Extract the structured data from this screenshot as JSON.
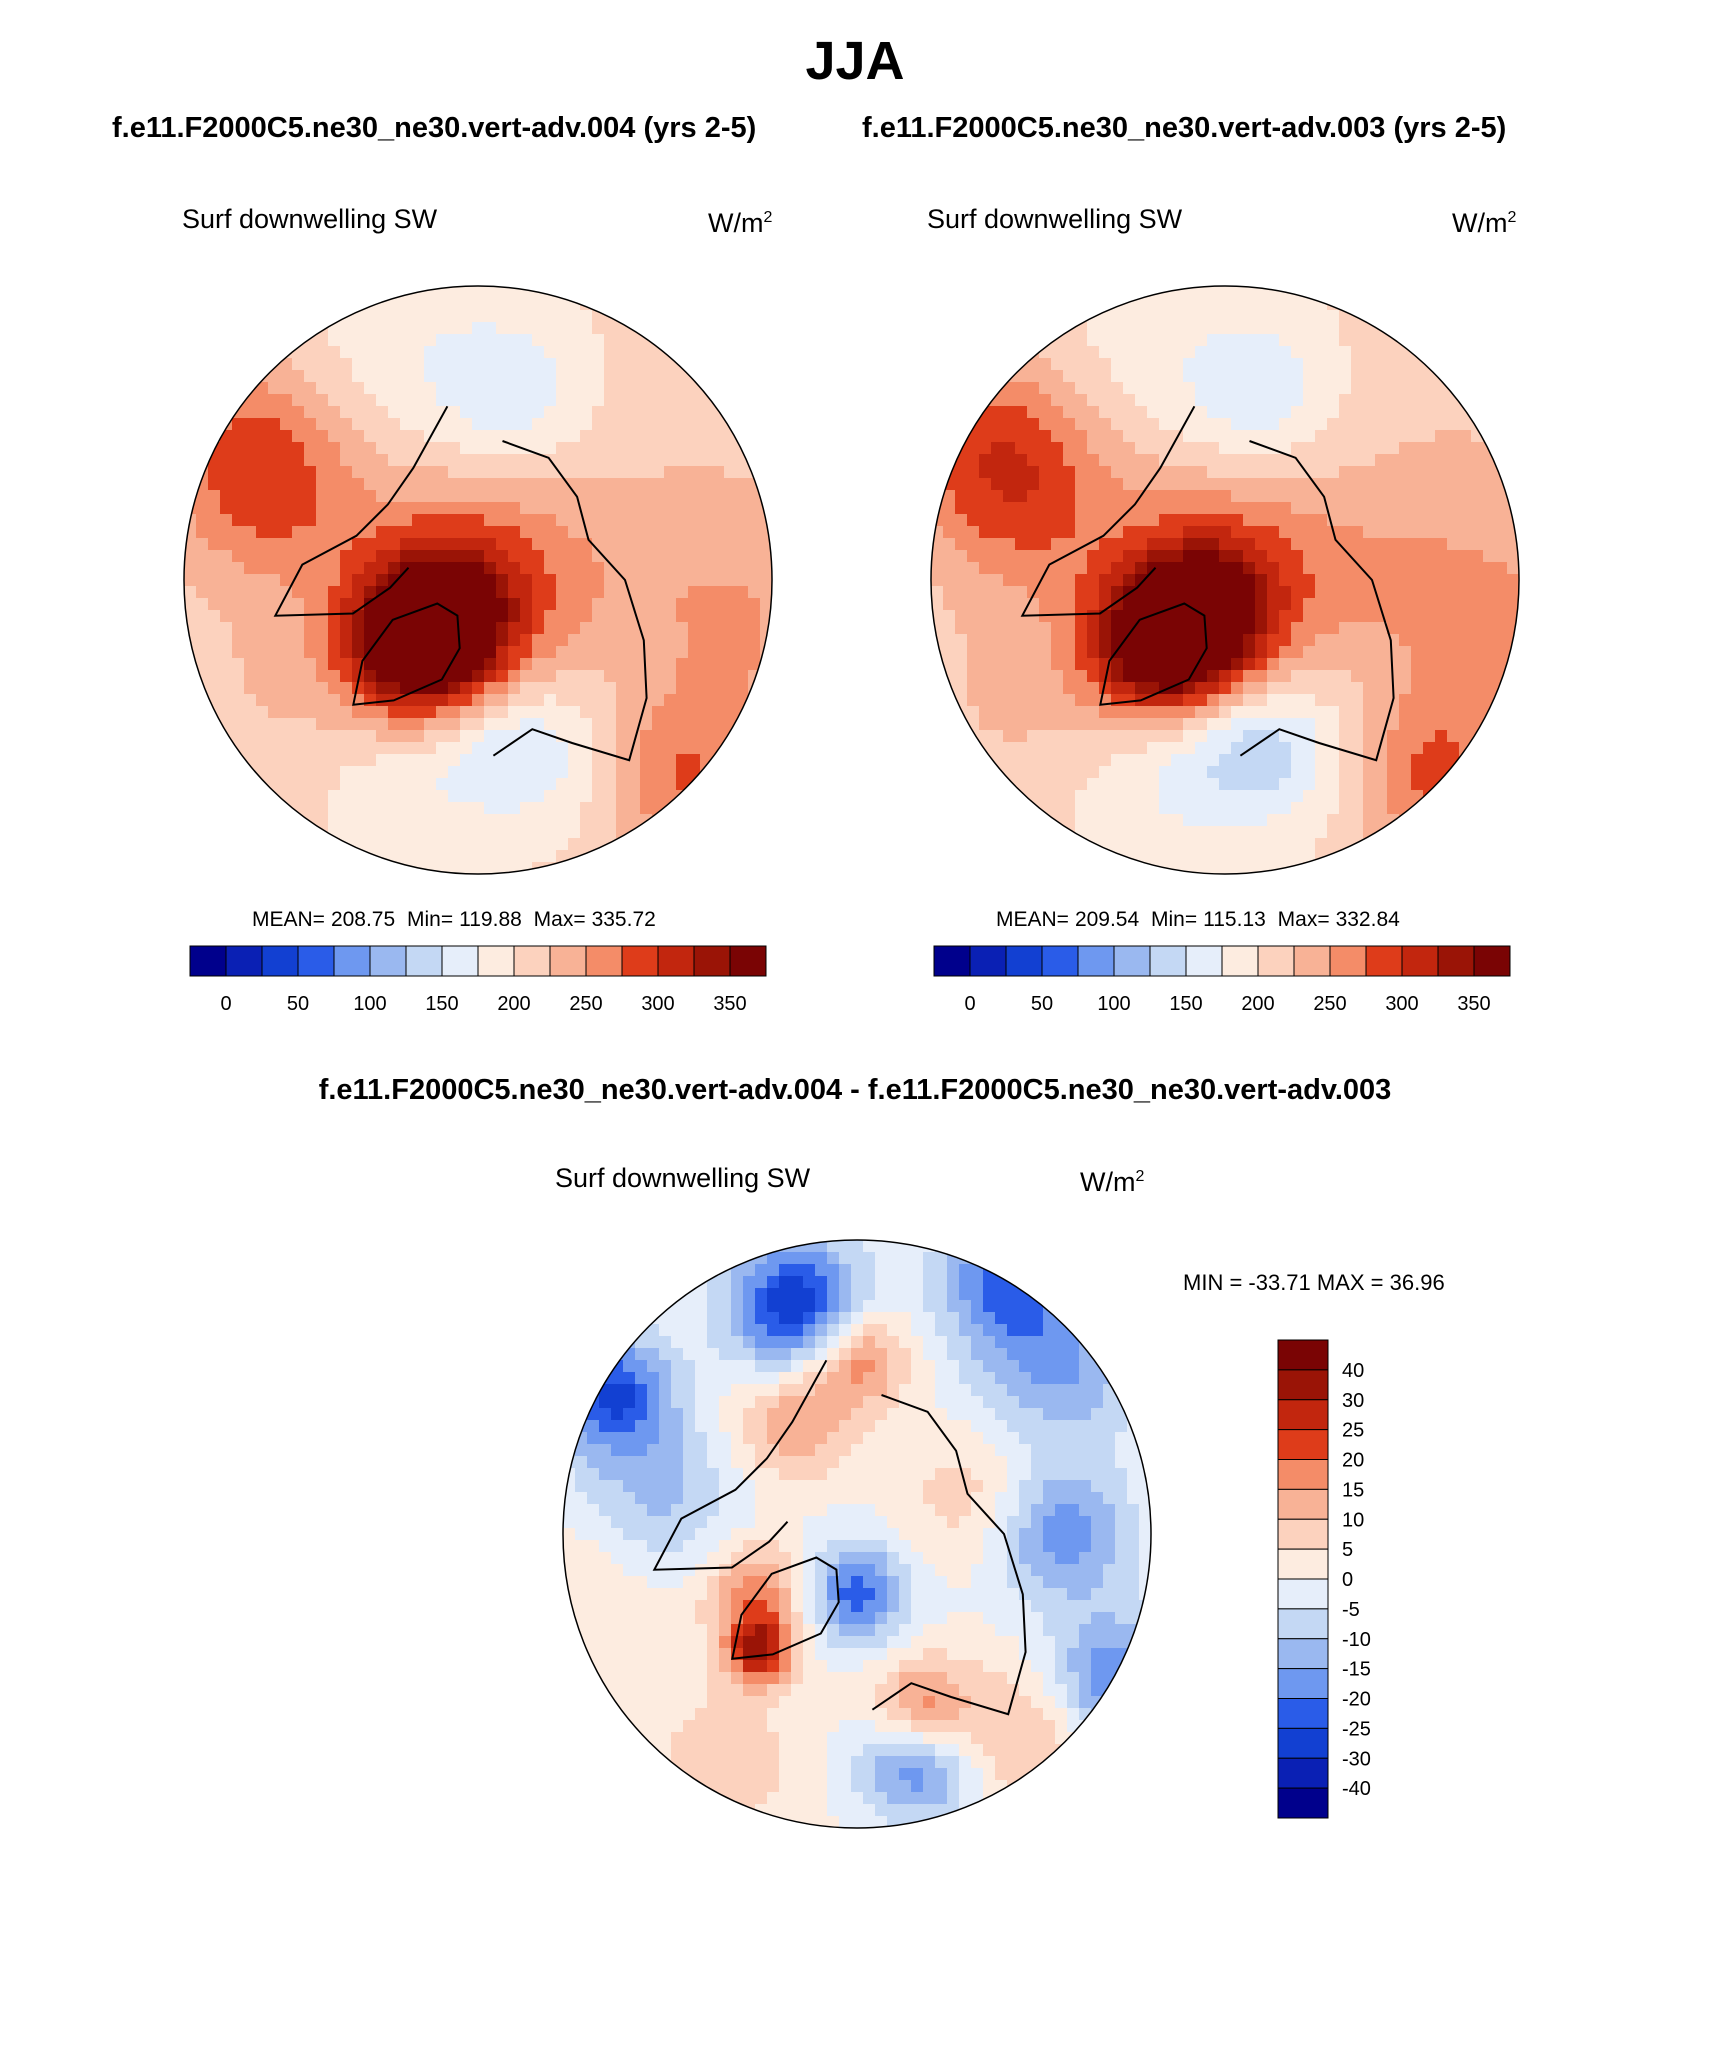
{
  "figure": {
    "title": "JJA",
    "diff_title": "f.e11.F2000C5.ne30_ne30.vert-adv.004 - f.e11.F2000C5.ne30_ne30.vert-adv.003"
  },
  "palette": [
    "#00008c",
    "#0a20b4",
    "#1240d2",
    "#2a5ce8",
    "#4a7cf0",
    "#6e98f0",
    "#9ab8f0",
    "#c4d8f4",
    "#e6eefa",
    "#fdece0",
    "#fcd2be",
    "#f8b296",
    "#f48c68",
    "#ec6438",
    "#de3c1a",
    "#c2260e",
    "#9a1406",
    "#7a0404"
  ],
  "chart_data": [
    {
      "type": "heatmap",
      "projection": "north-polar-stereographic",
      "case_title": "f.e11.F2000C5.ne30_ne30.vert-adv.004 (yrs 2-5)",
      "variable": "Surf downwelling SW",
      "units_base": "W/m",
      "units_exp": "2",
      "stats": {
        "mean_label": "MEAN=",
        "mean": "208.75",
        "min_label": "Min=",
        "min": "119.88",
        "max_label": "Max=",
        "max": "335.72"
      },
      "colorbar": {
        "orientation": "horizontal",
        "levels": [
          0,
          25,
          50,
          75,
          100,
          125,
          150,
          175,
          200,
          225,
          250,
          275,
          300,
          325,
          350
        ],
        "tick_labels": [
          "0",
          "50",
          "100",
          "150",
          "200",
          "250",
          "300",
          "350"
        ]
      },
      "field": {
        "background": 205,
        "blobs": [
          {
            "lon": 0,
            "lat": 90,
            "value": 275,
            "radius_deg": 14
          },
          {
            "lon": 320,
            "lat": 82,
            "value": 278,
            "radius_deg": 10
          },
          {
            "lon": 318,
            "lat": 72,
            "value": 310,
            "radius_deg": 9
          },
          {
            "lon": 318,
            "lat": 78,
            "value": 295,
            "radius_deg": 8
          },
          {
            "lon": 340,
            "lat": 60,
            "value": 170,
            "radius_deg": 12
          },
          {
            "lon": 10,
            "lat": 62,
            "value": 165,
            "radius_deg": 8
          },
          {
            "lon": 30,
            "lat": 55,
            "value": 178,
            "radius_deg": 10
          },
          {
            "lon": 170,
            "lat": 58,
            "value": 160,
            "radius_deg": 9
          },
          {
            "lon": 200,
            "lat": 50,
            "value": 180,
            "radius_deg": 14
          },
          {
            "lon": 240,
            "lat": 45,
            "value": 270,
            "radius_deg": 12
          },
          {
            "lon": 250,
            "lat": 55,
            "value": 245,
            "radius_deg": 12
          },
          {
            "lon": 80,
            "lat": 45,
            "value": 250,
            "radius_deg": 15
          },
          {
            "lon": 45,
            "lat": 42,
            "value": 275,
            "radius_deg": 10
          },
          {
            "lon": 120,
            "lat": 45,
            "value": 215,
            "radius_deg": 14
          },
          {
            "lon": 300,
            "lat": 50,
            "value": 225,
            "radius_deg": 12
          },
          {
            "lon": 100,
            "lat": 65,
            "value": 215,
            "radius_deg": 10
          }
        ]
      }
    },
    {
      "type": "heatmap",
      "projection": "north-polar-stereographic",
      "case_title": "f.e11.F2000C5.ne30_ne30.vert-adv.003 (yrs 2-5)",
      "variable": "Surf downwelling SW",
      "units_base": "W/m",
      "units_exp": "2",
      "stats": {
        "mean_label": "MEAN=",
        "mean": "209.54",
        "min_label": "Min=",
        "min": "115.13",
        "max_label": "Max=",
        "max": "332.84"
      },
      "colorbar": {
        "orientation": "horizontal",
        "levels": [
          0,
          25,
          50,
          75,
          100,
          125,
          150,
          175,
          200,
          225,
          250,
          275,
          300,
          325,
          350
        ],
        "tick_labels": [
          "0",
          "50",
          "100",
          "150",
          "200",
          "250",
          "300",
          "350"
        ]
      },
      "field": {
        "background": 205,
        "blobs": [
          {
            "lon": 0,
            "lat": 90,
            "value": 280,
            "radius_deg": 14
          },
          {
            "lon": 330,
            "lat": 84,
            "value": 285,
            "radius_deg": 9
          },
          {
            "lon": 318,
            "lat": 72,
            "value": 312,
            "radius_deg": 9
          },
          {
            "lon": 318,
            "lat": 78,
            "value": 298,
            "radius_deg": 8
          },
          {
            "lon": 345,
            "lat": 60,
            "value": 160,
            "radius_deg": 12
          },
          {
            "lon": 10,
            "lat": 62,
            "value": 160,
            "radius_deg": 8
          },
          {
            "lon": 30,
            "lat": 55,
            "value": 175,
            "radius_deg": 10
          },
          {
            "lon": 170,
            "lat": 58,
            "value": 158,
            "radius_deg": 9
          },
          {
            "lon": 200,
            "lat": 50,
            "value": 185,
            "radius_deg": 14
          },
          {
            "lon": 240,
            "lat": 45,
            "value": 275,
            "radius_deg": 12
          },
          {
            "lon": 250,
            "lat": 55,
            "value": 250,
            "radius_deg": 12
          },
          {
            "lon": 80,
            "lat": 45,
            "value": 255,
            "radius_deg": 15
          },
          {
            "lon": 45,
            "lat": 42,
            "value": 280,
            "radius_deg": 10
          },
          {
            "lon": 120,
            "lat": 45,
            "value": 220,
            "radius_deg": 14
          },
          {
            "lon": 300,
            "lat": 50,
            "value": 230,
            "radius_deg": 12
          },
          {
            "lon": 100,
            "lat": 65,
            "value": 220,
            "radius_deg": 10
          }
        ]
      }
    },
    {
      "type": "heatmap",
      "projection": "north-polar-stereographic",
      "variable": "Surf downwelling SW",
      "units_base": "W/m",
      "units_exp": "2",
      "stats": {
        "label": "MIN = -33.71 MAX =  36.96",
        "min": -33.71,
        "max": 36.96
      },
      "colorbar": {
        "orientation": "vertical",
        "levels": [
          -40,
          -30,
          -25,
          -20,
          -15,
          -10,
          -5,
          0,
          5,
          10,
          15,
          20,
          25,
          30,
          40
        ],
        "tick_labels": [
          "40",
          "30",
          "25",
          "20",
          "15",
          "10",
          "5",
          "0",
          "-5",
          "-10",
          "-15",
          "-20",
          "-25",
          "-30",
          "-40"
        ]
      },
      "field": {
        "background": 0,
        "blobs": [
          {
            "lon": 0,
            "lat": 80,
            "value": -22,
            "radius_deg": 6
          },
          {
            "lon": 300,
            "lat": 70,
            "value": 18,
            "radius_deg": 6
          },
          {
            "lon": 320,
            "lat": 64,
            "value": 30,
            "radius_deg": 4
          },
          {
            "lon": 210,
            "lat": 68,
            "value": 15,
            "radius_deg": 7
          },
          {
            "lon": 180,
            "lat": 60,
            "value": 20,
            "radius_deg": 6
          },
          {
            "lon": 195,
            "lat": 50,
            "value": -30,
            "radius_deg": 8
          },
          {
            "lon": 20,
            "lat": 58,
            "value": 22,
            "radius_deg": 6
          },
          {
            "lon": 15,
            "lat": 50,
            "value": -22,
            "radius_deg": 7
          },
          {
            "lon": 90,
            "lat": 55,
            "value": -18,
            "radius_deg": 8
          },
          {
            "lon": 130,
            "lat": 45,
            "value": -15,
            "radius_deg": 10
          },
          {
            "lon": 260,
            "lat": 55,
            "value": -12,
            "radius_deg": 10
          },
          {
            "lon": 60,
            "lat": 40,
            "value": -20,
            "radius_deg": 8
          },
          {
            "lon": 240,
            "lat": 42,
            "value": -25,
            "radius_deg": 7
          },
          {
            "lon": 150,
            "lat": 40,
            "value": -20,
            "radius_deg": 8
          },
          {
            "lon": 110,
            "lat": 70,
            "value": 8,
            "radius_deg": 8
          },
          {
            "lon": 40,
            "lat": 45,
            "value": 12,
            "radius_deg": 9
          },
          {
            "lon": 330,
            "lat": 45,
            "value": 8,
            "radius_deg": 10
          },
          {
            "lon": 280,
            "lat": 45,
            "value": 6,
            "radius_deg": 10
          }
        ]
      }
    }
  ]
}
